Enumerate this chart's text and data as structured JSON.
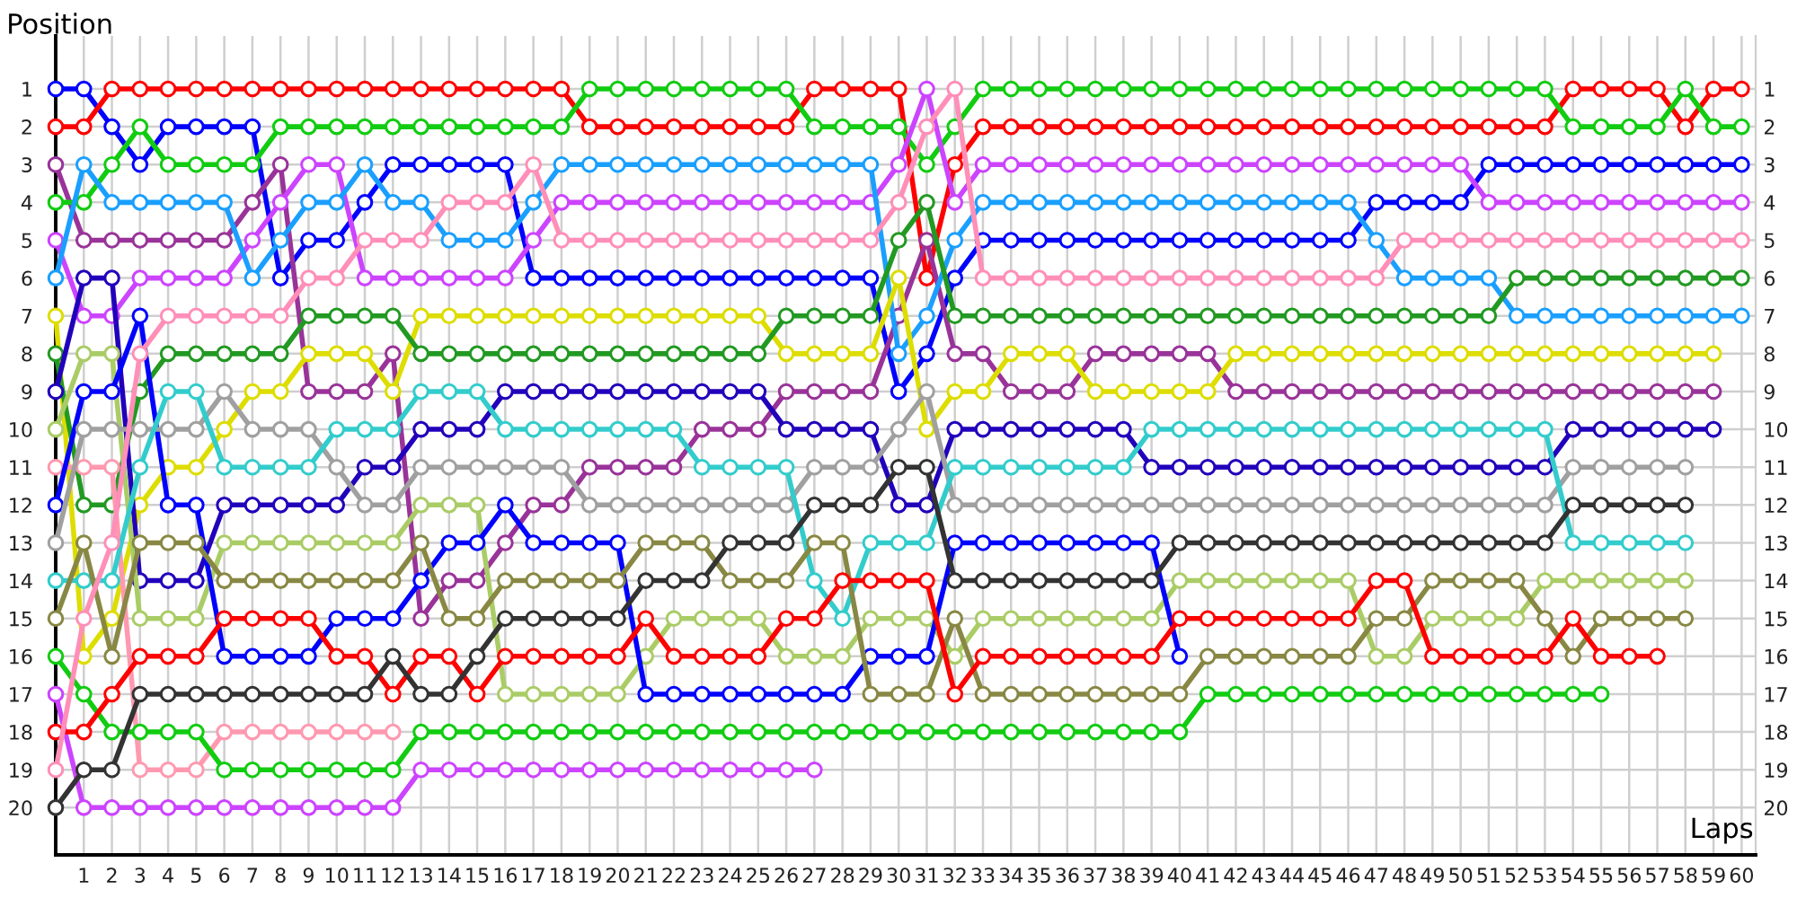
{
  "chart_data": {
    "type": "line",
    "xlabel": "Laps",
    "ylabel": "Position",
    "marker": "circle",
    "grid": true,
    "x": [
      0,
      1,
      2,
      3,
      4,
      5,
      6,
      7,
      8,
      9,
      10,
      11,
      12,
      13,
      14,
      15,
      16,
      17,
      18,
      19,
      20,
      21,
      22,
      23,
      24,
      25,
      26,
      27,
      28,
      29,
      30,
      31,
      32,
      33,
      34,
      35,
      36,
      37,
      38,
      39,
      40,
      41,
      42,
      43,
      44,
      45,
      46,
      47,
      48,
      49,
      50,
      51,
      52,
      53,
      54,
      55,
      56,
      57,
      58,
      59,
      60
    ],
    "xlim": [
      0,
      60.5
    ],
    "xticks": [
      1,
      2,
      3,
      4,
      5,
      6,
      7,
      8,
      9,
      10,
      11,
      12,
      13,
      14,
      15,
      16,
      17,
      18,
      19,
      20,
      21,
      22,
      23,
      24,
      25,
      26,
      27,
      28,
      29,
      30,
      31,
      32,
      33,
      34,
      35,
      36,
      37,
      38,
      39,
      40,
      41,
      42,
      43,
      44,
      45,
      46,
      47,
      48,
      49,
      50,
      51,
      52,
      53,
      54,
      55,
      56,
      57,
      58,
      59,
      60
    ],
    "ylim": [
      21.25,
      -0.4
    ],
    "yticks": [
      1,
      2,
      3,
      4,
      5,
      6,
      7,
      8,
      9,
      10,
      11,
      12,
      13,
      14,
      15,
      16,
      17,
      18,
      19,
      20
    ],
    "y2lim": [
      21.25,
      -0.4
    ],
    "y2ticks": [
      1,
      2,
      3,
      4,
      5,
      6,
      7,
      8,
      9,
      10,
      11,
      12,
      13,
      14,
      15,
      16,
      17,
      18,
      19,
      20
    ],
    "series": [
      {
        "color": "#0000ff",
        "values": [
          1,
          1,
          2,
          3,
          2,
          2,
          2,
          2,
          6,
          5,
          5,
          4,
          3,
          3,
          3,
          3,
          3,
          6,
          6,
          6,
          6,
          6,
          6,
          6,
          6,
          6,
          6,
          6,
          6,
          6,
          9,
          8,
          6,
          5,
          5,
          5,
          5,
          5,
          5,
          5,
          5,
          5,
          5,
          5,
          5,
          5,
          5,
          4,
          4,
          4,
          4,
          3,
          3,
          3,
          3,
          3,
          3,
          3,
          3,
          3,
          3
        ]
      },
      {
        "color": "#ff0000",
        "values": [
          2,
          2,
          1,
          1,
          1,
          1,
          1,
          1,
          1,
          1,
          1,
          1,
          1,
          1,
          1,
          1,
          1,
          1,
          1,
          2,
          2,
          2,
          2,
          2,
          2,
          2,
          2,
          1,
          1,
          1,
          1,
          6,
          3,
          2,
          2,
          2,
          2,
          2,
          2,
          2,
          2,
          2,
          2,
          2,
          2,
          2,
          2,
          2,
          2,
          2,
          2,
          2,
          2,
          2,
          1,
          1,
          1,
          1,
          2,
          1,
          1
        ]
      },
      {
        "color": "#993399",
        "values": [
          3,
          5,
          5,
          5,
          5,
          5,
          5,
          4,
          3,
          9,
          9,
          9,
          8,
          15,
          14,
          14,
          13,
          12,
          12,
          11,
          11,
          11,
          11,
          10,
          10,
          10,
          9,
          9,
          9,
          9,
          7,
          5,
          8,
          8,
          9,
          9,
          9,
          8,
          8,
          8,
          8,
          8,
          9,
          9,
          9,
          9,
          9,
          9,
          9,
          9,
          9,
          9,
          9,
          9,
          9,
          9,
          9,
          9,
          9,
          9,
          null
        ]
      },
      {
        "color": "#11cc11",
        "values": [
          4,
          4,
          3,
          2,
          3,
          3,
          3,
          3,
          2,
          2,
          2,
          2,
          2,
          2,
          2,
          2,
          2,
          2,
          2,
          1,
          1,
          1,
          1,
          1,
          1,
          1,
          1,
          2,
          2,
          2,
          2,
          3,
          2,
          1,
          1,
          1,
          1,
          1,
          1,
          1,
          1,
          1,
          1,
          1,
          1,
          1,
          1,
          1,
          1,
          1,
          1,
          1,
          1,
          1,
          2,
          2,
          2,
          2,
          1,
          2,
          2
        ]
      },
      {
        "color": "#cc44ff",
        "values": [
          5,
          7,
          7,
          6,
          6,
          6,
          6,
          5,
          4,
          3,
          3,
          6,
          6,
          6,
          6,
          6,
          6,
          5,
          4,
          4,
          4,
          4,
          4,
          4,
          4,
          4,
          4,
          4,
          4,
          4,
          3,
          1,
          4,
          3,
          3,
          3,
          3,
          3,
          3,
          3,
          3,
          3,
          3,
          3,
          3,
          3,
          3,
          3,
          3,
          3,
          3,
          4,
          4,
          4,
          4,
          4,
          4,
          4,
          4,
          4,
          4
        ]
      },
      {
        "color": "#1a9fff",
        "values": [
          6,
          3,
          4,
          4,
          4,
          4,
          4,
          6,
          5,
          4,
          4,
          3,
          4,
          4,
          5,
          5,
          5,
          4,
          3,
          3,
          3,
          3,
          3,
          3,
          3,
          3,
          3,
          3,
          3,
          3,
          8,
          7,
          5,
          4,
          4,
          4,
          4,
          4,
          4,
          4,
          4,
          4,
          4,
          4,
          4,
          4,
          4,
          5,
          6,
          6,
          6,
          6,
          7,
          7,
          7,
          7,
          7,
          7,
          7,
          7,
          7
        ]
      },
      {
        "color": "#dddd00",
        "values": [
          7,
          16,
          15,
          12,
          11,
          11,
          10,
          9,
          9,
          8,
          8,
          8,
          9,
          7,
          7,
          7,
          7,
          7,
          7,
          7,
          7,
          7,
          7,
          7,
          7,
          7,
          8,
          8,
          8,
          8,
          6,
          10,
          9,
          9,
          8,
          8,
          8,
          9,
          9,
          9,
          9,
          9,
          8,
          8,
          8,
          8,
          8,
          8,
          8,
          8,
          8,
          8,
          8,
          8,
          8,
          8,
          8,
          8,
          8,
          8,
          null
        ]
      },
      {
        "color": "#229922",
        "values": [
          8,
          12,
          12,
          9,
          8,
          8,
          8,
          8,
          8,
          7,
          7,
          7,
          7,
          8,
          8,
          8,
          8,
          8,
          8,
          8,
          8,
          8,
          8,
          8,
          8,
          8,
          7,
          7,
          7,
          7,
          5,
          4,
          7,
          7,
          7,
          7,
          7,
          7,
          7,
          7,
          7,
          7,
          7,
          7,
          7,
          7,
          7,
          7,
          7,
          7,
          7,
          7,
          6,
          6,
          6,
          6,
          6,
          6,
          6,
          6,
          6
        ]
      },
      {
        "color": "#2200bb",
        "values": [
          9,
          6,
          6,
          14,
          14,
          14,
          12,
          12,
          12,
          12,
          12,
          11,
          11,
          10,
          10,
          10,
          9,
          9,
          9,
          9,
          9,
          9,
          9,
          9,
          9,
          9,
          10,
          10,
          10,
          10,
          12,
          12,
          10,
          10,
          10,
          10,
          10,
          10,
          10,
          11,
          11,
          11,
          11,
          11,
          11,
          11,
          11,
          11,
          11,
          11,
          11,
          11,
          11,
          11,
          10,
          10,
          10,
          10,
          10,
          10,
          null
        ]
      },
      {
        "color": "#aacc66",
        "values": [
          10,
          8,
          8,
          15,
          15,
          15,
          13,
          13,
          13,
          13,
          13,
          13,
          13,
          12,
          12,
          12,
          17,
          17,
          17,
          17,
          17,
          16,
          15,
          15,
          15,
          15,
          16,
          16,
          16,
          15,
          15,
          15,
          16,
          15,
          15,
          15,
          15,
          15,
          15,
          15,
          14,
          14,
          14,
          14,
          14,
          14,
          14,
          16,
          16,
          15,
          15,
          15,
          15,
          14,
          14,
          14,
          14,
          14,
          14,
          null,
          null
        ]
      },
      {
        "color": "#ff99b0",
        "values": [
          11,
          11,
          11,
          19,
          19,
          19,
          18,
          18,
          18,
          18,
          18,
          18,
          18,
          null,
          null,
          null,
          null,
          null,
          null,
          null,
          null,
          null,
          null,
          null,
          null,
          null,
          null,
          null,
          null,
          null,
          null,
          null,
          null,
          null,
          null,
          null,
          null,
          null,
          null,
          null,
          null,
          null,
          null,
          null,
          null,
          null,
          null,
          null,
          null,
          null,
          null,
          null,
          null,
          null,
          null,
          null,
          null,
          null,
          null,
          null,
          null
        ]
      },
      {
        "color": "#0000ff",
        "values": [
          12,
          9,
          9,
          7,
          12,
          12,
          16,
          16,
          16,
          16,
          15,
          15,
          15,
          14,
          13,
          13,
          12,
          13,
          13,
          13,
          13,
          17,
          17,
          17,
          17,
          17,
          17,
          17,
          17,
          16,
          16,
          16,
          13,
          13,
          13,
          13,
          13,
          13,
          13,
          13,
          16,
          null,
          null,
          null,
          null,
          null,
          null,
          null,
          null,
          null,
          null,
          null,
          null,
          null,
          null,
          null,
          null,
          null,
          null,
          null,
          null
        ]
      },
      {
        "color": "#a0a0a0",
        "values": [
          13,
          10,
          10,
          10,
          10,
          10,
          9,
          10,
          10,
          10,
          11,
          12,
          12,
          11,
          11,
          11,
          11,
          11,
          11,
          12,
          12,
          12,
          12,
          12,
          12,
          12,
          12,
          11,
          11,
          11,
          10,
          9,
          12,
          12,
          12,
          12,
          12,
          12,
          12,
          12,
          12,
          12,
          12,
          12,
          12,
          12,
          12,
          12,
          12,
          12,
          12,
          12,
          12,
          12,
          11,
          11,
          11,
          11,
          11,
          null,
          null
        ]
      },
      {
        "color": "#33cccc",
        "values": [
          14,
          14,
          14,
          11,
          9,
          9,
          11,
          11,
          11,
          11,
          10,
          10,
          10,
          9,
          9,
          9,
          10,
          10,
          10,
          10,
          10,
          10,
          10,
          11,
          11,
          11,
          11,
          14,
          15,
          13,
          13,
          13,
          11,
          11,
          11,
          11,
          11,
          11,
          11,
          10,
          10,
          10,
          10,
          10,
          10,
          10,
          10,
          10,
          10,
          10,
          10,
          10,
          10,
          10,
          13,
          13,
          13,
          13,
          13,
          null,
          null
        ]
      },
      {
        "color": "#888844",
        "values": [
          15,
          13,
          16,
          13,
          13,
          13,
          14,
          14,
          14,
          14,
          14,
          14,
          14,
          13,
          15,
          15,
          14,
          14,
          14,
          14,
          14,
          13,
          13,
          13,
          14,
          14,
          14,
          13,
          13,
          17,
          17,
          17,
          15,
          17,
          17,
          17,
          17,
          17,
          17,
          17,
          17,
          16,
          16,
          16,
          16,
          16,
          16,
          15,
          15,
          14,
          14,
          14,
          14,
          15,
          16,
          15,
          15,
          15,
          15,
          null,
          null
        ]
      },
      {
        "color": "#11cc11",
        "values": [
          16,
          17,
          18,
          18,
          18,
          18,
          19,
          19,
          19,
          19,
          19,
          19,
          19,
          18,
          18,
          18,
          18,
          18,
          18,
          18,
          18,
          18,
          18,
          18,
          18,
          18,
          18,
          18,
          18,
          18,
          18,
          18,
          18,
          18,
          18,
          18,
          18,
          18,
          18,
          18,
          18,
          17,
          17,
          17,
          17,
          17,
          17,
          17,
          17,
          17,
          17,
          17,
          17,
          17,
          17,
          17,
          null,
          null,
          null,
          null,
          null
        ]
      },
      {
        "color": "#cc44ff",
        "values": [
          17,
          20,
          20,
          20,
          20,
          20,
          20,
          20,
          20,
          20,
          20,
          20,
          20,
          19,
          19,
          19,
          19,
          19,
          19,
          19,
          19,
          19,
          19,
          19,
          19,
          19,
          19,
          19,
          null,
          null,
          null,
          null,
          null,
          null,
          null,
          null,
          null,
          null,
          null,
          null,
          null,
          null,
          null,
          null,
          null,
          null,
          null,
          null,
          null,
          null,
          null,
          null,
          null,
          null,
          null,
          null,
          null,
          null,
          null,
          null,
          null
        ]
      },
      {
        "color": "#ff0000",
        "values": [
          18,
          18,
          17,
          16,
          16,
          16,
          15,
          15,
          15,
          15,
          16,
          16,
          17,
          16,
          16,
          17,
          16,
          16,
          16,
          16,
          16,
          15,
          16,
          16,
          16,
          16,
          15,
          15,
          14,
          14,
          14,
          14,
          17,
          16,
          16,
          16,
          16,
          16,
          16,
          16,
          15,
          15,
          15,
          15,
          15,
          15,
          15,
          14,
          14,
          16,
          16,
          16,
          16,
          16,
          15,
          16,
          16,
          16,
          null,
          null,
          null
        ]
      },
      {
        "color": "#ff8fb8",
        "values": [
          19,
          15,
          13,
          8,
          7,
          7,
          7,
          7,
          7,
          6,
          6,
          5,
          5,
          5,
          4,
          4,
          4,
          3,
          5,
          5,
          5,
          5,
          5,
          5,
          5,
          5,
          5,
          5,
          5,
          5,
          4,
          2,
          1,
          6,
          6,
          6,
          6,
          6,
          6,
          6,
          6,
          6,
          6,
          6,
          6,
          6,
          6,
          6,
          5,
          5,
          5,
          5,
          5,
          5,
          5,
          5,
          5,
          5,
          5,
          5,
          5
        ]
      },
      {
        "color": "#333333",
        "values": [
          20,
          19,
          19,
          17,
          17,
          17,
          17,
          17,
          17,
          17,
          17,
          17,
          16,
          17,
          17,
          16,
          15,
          15,
          15,
          15,
          15,
          14,
          14,
          14,
          13,
          13,
          13,
          12,
          12,
          12,
          11,
          11,
          14,
          14,
          14,
          14,
          14,
          14,
          14,
          14,
          13,
          13,
          13,
          13,
          13,
          13,
          13,
          13,
          13,
          13,
          13,
          13,
          13,
          13,
          12,
          12,
          12,
          12,
          12,
          null,
          null
        ]
      }
    ]
  }
}
